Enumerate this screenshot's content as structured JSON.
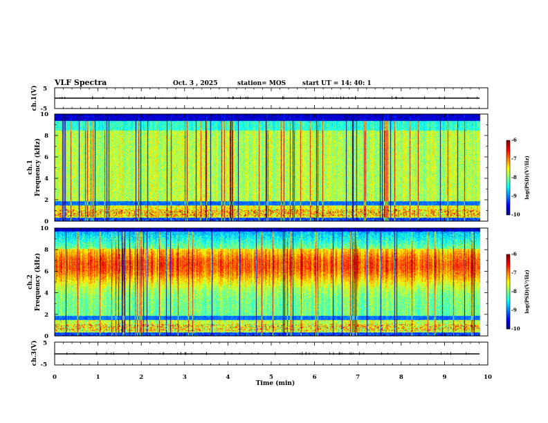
{
  "header": {
    "title": "VLF Spectra",
    "date": "Oct. 3  , 2025",
    "station": "station= MOS",
    "start_ut": "start  UT  =   14: 40: 1"
  },
  "chart_data": {
    "type": "heatmap",
    "title": "VLF Spectra",
    "xlabel": "Time  (min)",
    "xlim": [
      0,
      10
    ],
    "xticks": [
      0,
      1,
      2,
      3,
      4,
      5,
      6,
      7,
      8,
      9,
      10
    ],
    "data_end_min": 9.83,
    "panels": [
      {
        "name": "ch1-voltage",
        "type": "line",
        "ylabel": "ch.1(V)",
        "ylim": [
          -5,
          5
        ],
        "yticks": [
          5,
          -5
        ],
        "level": 0
      },
      {
        "name": "ch1-spectrogram",
        "type": "heatmap",
        "ylabel_line1": "ch.1",
        "ylabel_line2": "Frequency  (kHz)",
        "ylim": [
          0,
          10
        ],
        "yticks": [
          0,
          2,
          4,
          6,
          8,
          10
        ],
        "colorbar": {
          "label": "log(PSD)(V²/Hz)",
          "range": [
            -10,
            -6
          ],
          "ticks": [
            "-6",
            "-7",
            "-8",
            "-9",
            "-10"
          ]
        },
        "signal_top_khz": 9.4,
        "band_khz": 1.7
      },
      {
        "name": "ch2-spectrogram",
        "type": "heatmap",
        "ylabel_line1": "ch.2",
        "ylabel_line2": "Frequency  (kHz)",
        "ylim": [
          0,
          10
        ],
        "yticks": [
          0,
          2,
          4,
          6,
          8,
          10
        ],
        "colorbar": {
          "label": "log(PSD)(V²/Hz)",
          "range": [
            -10,
            -6
          ],
          "ticks": [
            "-6",
            "-7",
            "-8",
            "-9",
            "-10"
          ]
        },
        "signal_top_khz": 9.7,
        "band_khz": 1.7
      },
      {
        "name": "ch3-voltage",
        "type": "line",
        "ylabel": "ch.3(V)",
        "ylim": [
          -5,
          5
        ],
        "yticks": [
          5,
          -5
        ],
        "level": 0
      }
    ]
  }
}
